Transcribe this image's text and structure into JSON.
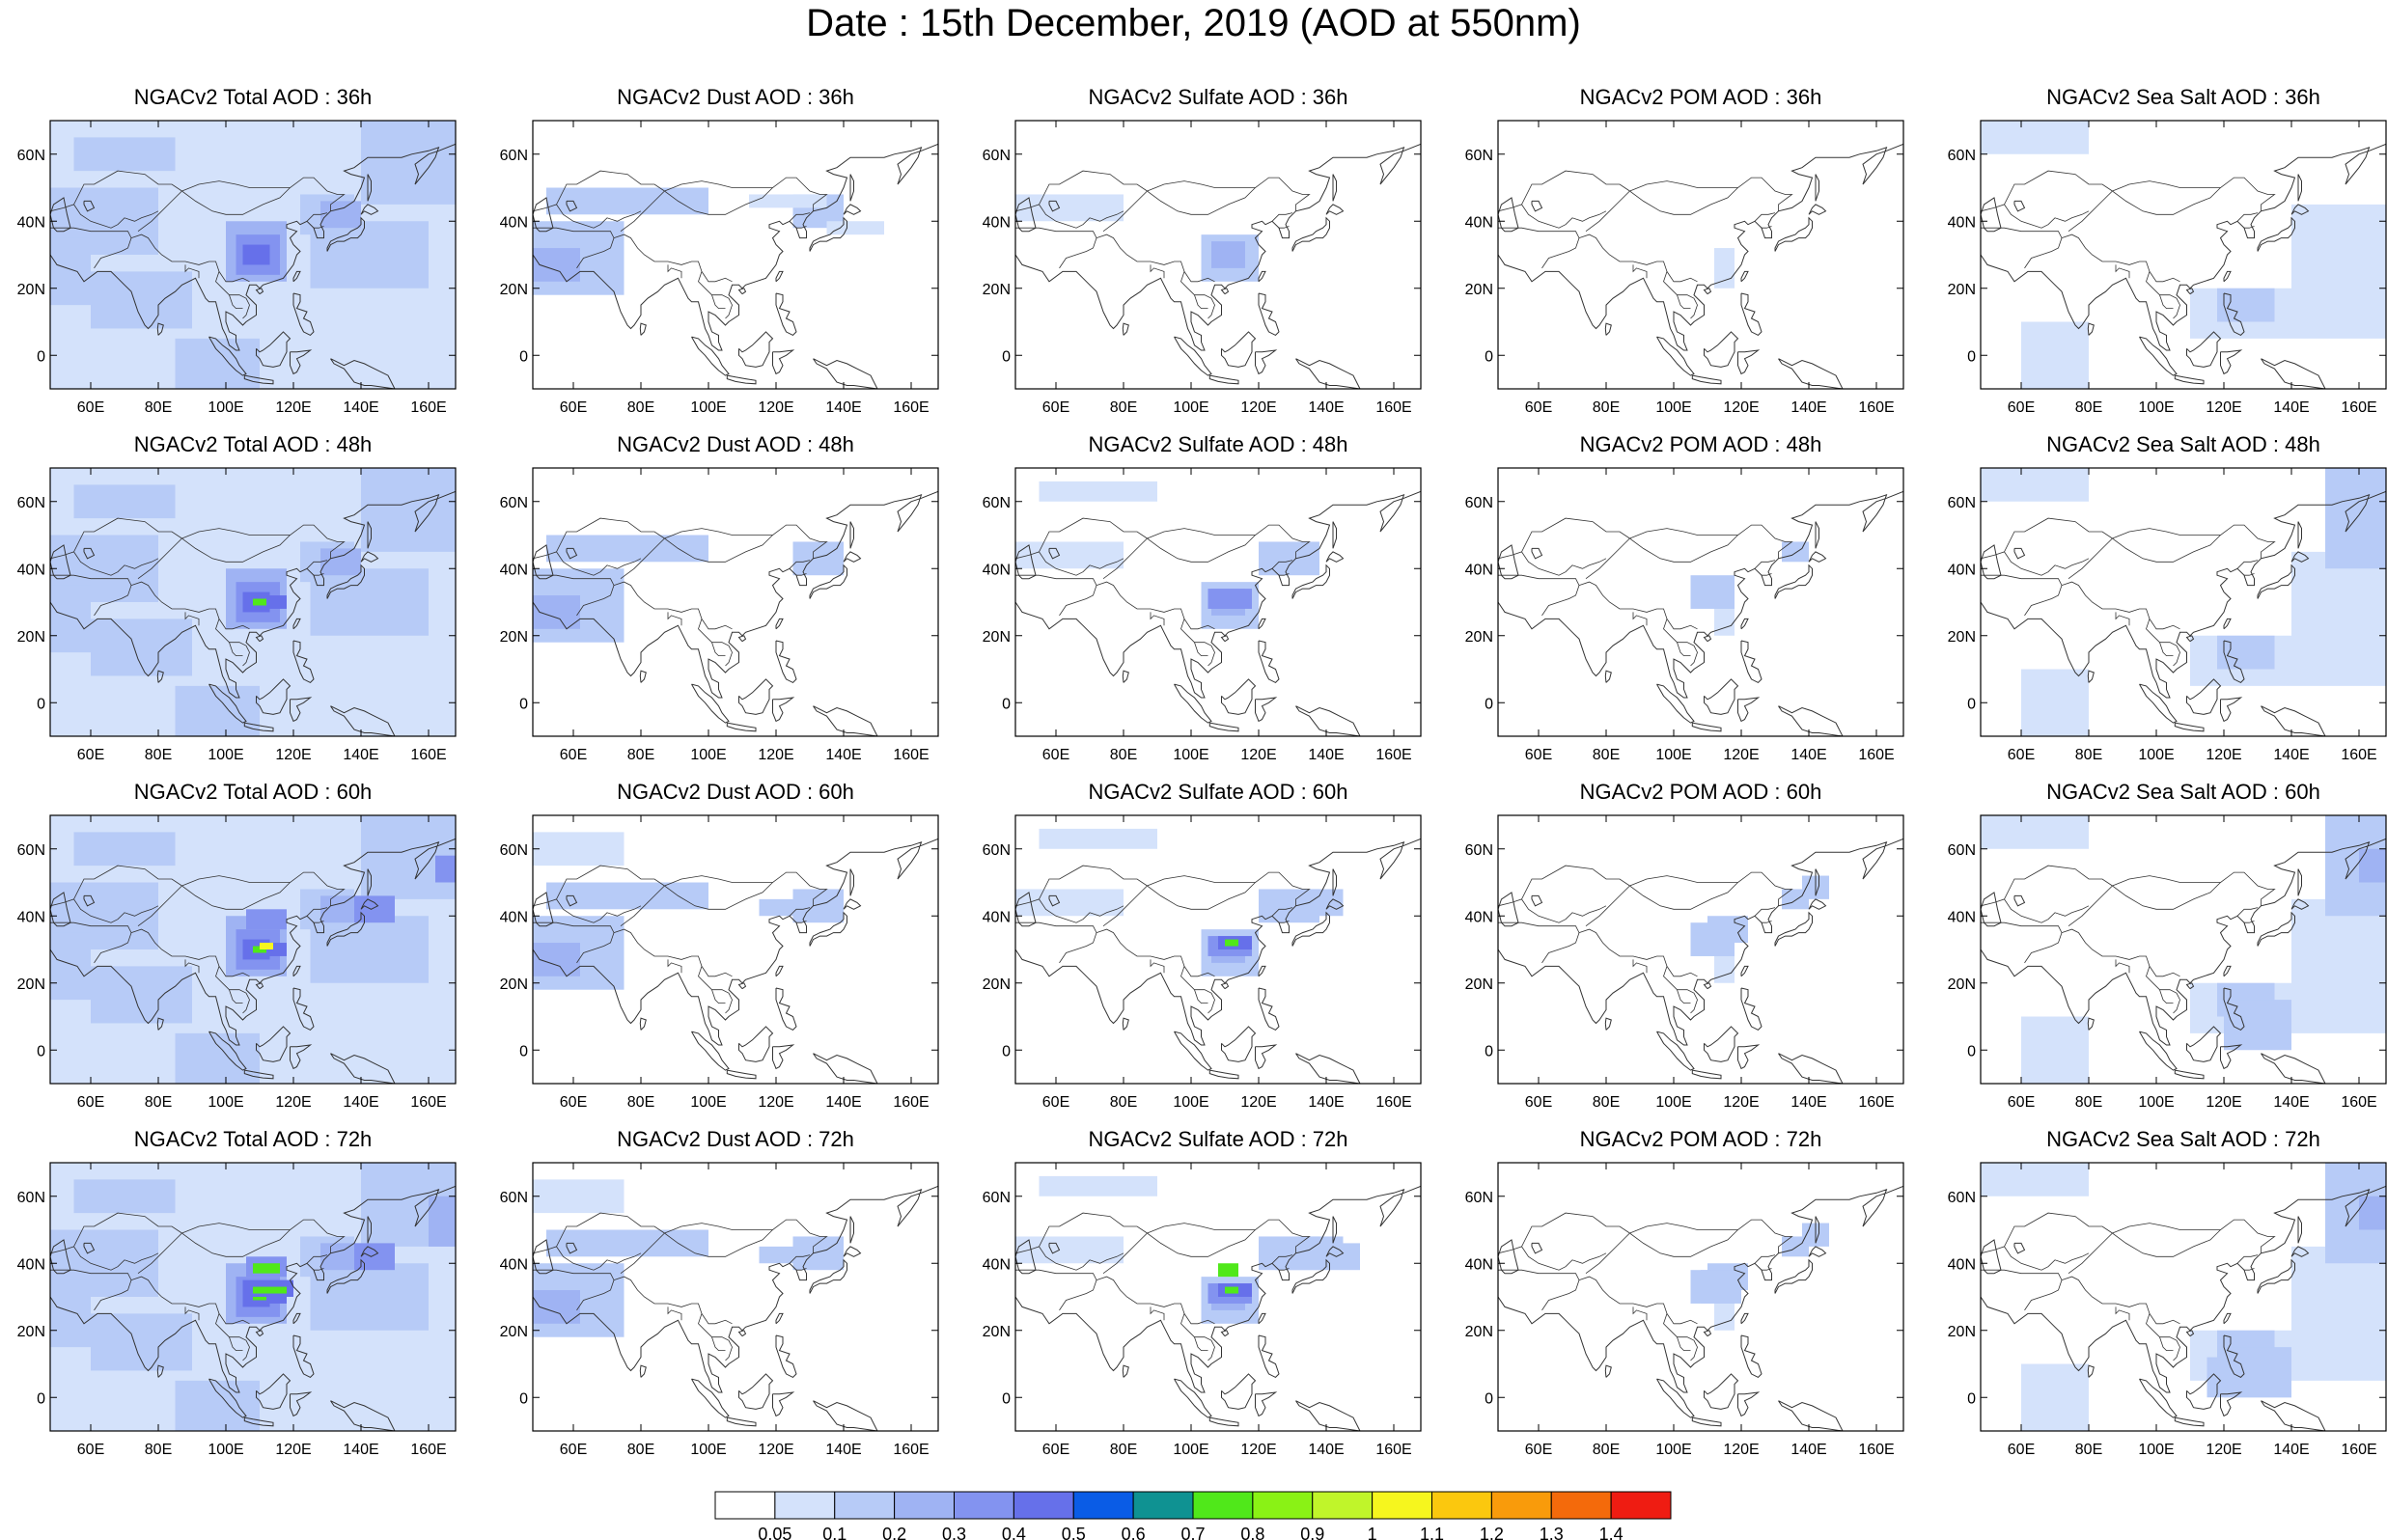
{
  "title": "Date : 15th December, 2019 (AOD at 550nm)",
  "axes": {
    "lon_ticks": [
      "60E",
      "80E",
      "100E",
      "120E",
      "140E",
      "160E"
    ],
    "lon_values": [
      60,
      80,
      100,
      120,
      140,
      160
    ],
    "lat_ticks": [
      "60N",
      "40N",
      "20N",
      "0"
    ],
    "lat_values": [
      60,
      40,
      20,
      0
    ],
    "lon_range": [
      48,
      168
    ],
    "lat_range": [
      -10,
      70
    ]
  },
  "panels": [
    {
      "title": "NGACv2 Total AOD : 36h",
      "field": "total",
      "hour": 36
    },
    {
      "title": "NGACv2 Dust AOD : 36h",
      "field": "dust",
      "hour": 36
    },
    {
      "title": "NGACv2 Sulfate AOD : 36h",
      "field": "sulfate",
      "hour": 36
    },
    {
      "title": "NGACv2 POM AOD : 36h",
      "field": "pom",
      "hour": 36
    },
    {
      "title": "NGACv2 Sea Salt AOD : 36h",
      "field": "seasalt",
      "hour": 36
    },
    {
      "title": "NGACv2 Total AOD : 48h",
      "field": "total",
      "hour": 48
    },
    {
      "title": "NGACv2 Dust AOD : 48h",
      "field": "dust",
      "hour": 48
    },
    {
      "title": "NGACv2 Sulfate AOD : 48h",
      "field": "sulfate",
      "hour": 48
    },
    {
      "title": "NGACv2 POM AOD : 48h",
      "field": "pom",
      "hour": 48
    },
    {
      "title": "NGACv2 Sea Salt AOD : 48h",
      "field": "seasalt",
      "hour": 48
    },
    {
      "title": "NGACv2 Total AOD : 60h",
      "field": "total",
      "hour": 60
    },
    {
      "title": "NGACv2 Dust AOD : 60h",
      "field": "dust",
      "hour": 60
    },
    {
      "title": "NGACv2 Sulfate AOD : 60h",
      "field": "sulfate",
      "hour": 60
    },
    {
      "title": "NGACv2 POM AOD : 60h",
      "field": "pom",
      "hour": 60
    },
    {
      "title": "NGACv2 Sea Salt AOD : 60h",
      "field": "seasalt",
      "hour": 60
    },
    {
      "title": "NGACv2 Total AOD : 72h",
      "field": "total",
      "hour": 72
    },
    {
      "title": "NGACv2 Dust AOD : 72h",
      "field": "dust",
      "hour": 72
    },
    {
      "title": "NGACv2 Sulfate AOD : 72h",
      "field": "sulfate",
      "hour": 72
    },
    {
      "title": "NGACv2 POM AOD : 72h",
      "field": "pom",
      "hour": 72
    },
    {
      "title": "NGACv2 Sea Salt  AOD : 72h",
      "field": "seasalt",
      "hour": 72
    }
  ],
  "colorbar": {
    "labels": [
      "0.05",
      "0.1",
      "0.2",
      "0.3",
      "0.4",
      "0.5",
      "0.6",
      "0.7",
      "0.8",
      "0.9",
      "1",
      "1.1",
      "1.2",
      "1.3",
      "1.4"
    ],
    "colors": [
      "#ffffff",
      "#d4e2fb",
      "#b7cbf7",
      "#9fb3f3",
      "#8393f0",
      "#6670ea",
      "#0a5ce6",
      "#0f9292",
      "#50e81a",
      "#8af215",
      "#c0f52a",
      "#f6f61e",
      "#fbc80e",
      "#f99b0b",
      "#f46a0b",
      "#ef1c12"
    ]
  },
  "colors": {
    "coastline": "#333333",
    "frame": "#000000"
  }
}
